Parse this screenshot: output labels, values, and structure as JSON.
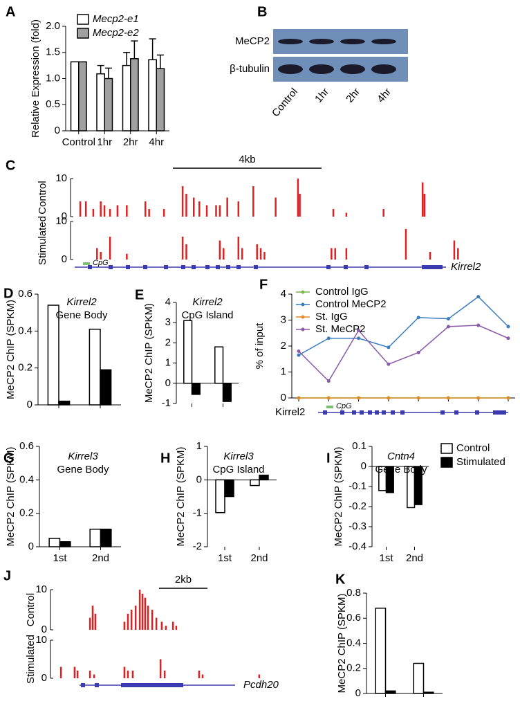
{
  "blot": {
    "label": "B",
    "rows": [
      "MeCP2",
      "β-tubulin"
    ],
    "lanes": [
      "Control",
      "1hr",
      "2hr",
      "4hr"
    ]
  },
  "chart_data": [
    {
      "label": "A",
      "type": "bar",
      "ylabel": "Relative Expression (fold)",
      "categories": [
        "Control",
        "1hr",
        "2hr",
        "4hr"
      ],
      "series": [
        {
          "name": "Mecp2-e1",
          "color": "#ffffff",
          "values": [
            1.32,
            1.09,
            1.25,
            1.36
          ],
          "errors": [
            null,
            0.16,
            0.25,
            0.4
          ]
        },
        {
          "name": "Mecp2-e2",
          "color": "#a0a0a0",
          "values": [
            1.32,
            1.0,
            1.38,
            1.19
          ],
          "errors": [
            null,
            0.2,
            0.34,
            0.26
          ]
        }
      ],
      "ylim": [
        0,
        2
      ],
      "yticks": [
        0,
        0.5,
        {
          "value": 1,
          "label": "1.0"
        },
        1.5,
        {
          "value": 2,
          "label": "2.0"
        }
      ],
      "legend": "upper left"
    },
    {
      "label": "C",
      "type": "track",
      "scale_bar": "4kb",
      "gene": "Kirrel2",
      "cpg": "CpG",
      "xlim": [
        0,
        110
      ],
      "ylim": [
        0,
        10
      ],
      "yticks": [
        0,
        10
      ],
      "series": [
        {
          "name": "Control",
          "color": "#e02020",
          "x": [
            1.5,
            3,
            5,
            7,
            8,
            9.5,
            11.5,
            14,
            19,
            20,
            24,
            29,
            30,
            32,
            33.5,
            35.5,
            38,
            39,
            41,
            44,
            48,
            54,
            60,
            60.5,
            69.5,
            73,
            83,
            93.5,
            94
          ],
          "values": [
            4,
            4,
            2,
            4,
            3,
            2,
            3,
            3,
            4,
            2,
            2,
            8,
            6,
            5,
            4,
            3,
            3,
            3,
            5,
            4,
            8,
            5,
            10,
            6,
            2,
            1,
            2,
            9,
            6
          ]
        },
        {
          "name": "Stimulated",
          "color": "#e02020",
          "x": [
            6,
            7,
            9.5,
            14,
            29,
            30,
            39,
            40,
            44,
            45,
            49,
            50,
            51,
            69,
            70,
            73,
            89,
            95.5,
            102,
            103
          ],
          "values": [
            3,
            2,
            6,
            1.5,
            6,
            4,
            5,
            3,
            6,
            3,
            4,
            3,
            2,
            3,
            3,
            3,
            8,
            2,
            5,
            3
          ]
        }
      ]
    },
    {
      "label": "D",
      "type": "bar",
      "title": "Kirrel2",
      "subtitle": "Gene Body",
      "ylabel": "MeCP2 ChIP (SPKM)",
      "ylim": [
        0,
        0.6
      ],
      "yticks": [
        0,
        0.2,
        0.4,
        0.6
      ],
      "series": [
        {
          "color": "#ffffff",
          "values": [
            0.54,
            0.41
          ]
        },
        {
          "color": "#000000",
          "values": [
            0.02,
            0.19
          ]
        }
      ]
    },
    {
      "label": "E",
      "type": "bar",
      "title": "Kirrel2",
      "subtitle": "CpG Island",
      "ylabel": "MeCP2 ChIP (SPKM)",
      "ylim": [
        -1,
        4
      ],
      "yticks": [
        -1,
        0,
        1,
        2,
        3,
        4
      ],
      "series": [
        {
          "color": "#ffffff",
          "values": [
            3.1,
            1.8
          ]
        },
        {
          "color": "#000000",
          "values": [
            -0.55,
            -0.9
          ]
        }
      ]
    },
    {
      "label": "F",
      "type": "line",
      "ylabel": "% of input",
      "gene": "Kirrel2",
      "cpg": "CpG",
      "categories": [
        null,
        null,
        null,
        null,
        null,
        null,
        null,
        null
      ],
      "ylim": [
        0,
        4
      ],
      "yticks": [
        0,
        1,
        2,
        3,
        4
      ],
      "legend": "upper left",
      "series": [
        {
          "name": "Control IgG",
          "color": "#7ab648",
          "values": [
            0,
            0,
            0,
            0,
            0,
            0,
            0,
            0
          ]
        },
        {
          "name": "Control MeCP2",
          "color": "#3a7cc0",
          "values": [
            1.65,
            2.3,
            2.3,
            1.95,
            3.1,
            3.05,
            3.9,
            2.75
          ]
        },
        {
          "name": "St. IgG",
          "color": "#e08a2a",
          "values": [
            0,
            0,
            0,
            0,
            0,
            0,
            0,
            0
          ]
        },
        {
          "name": "St. MeCP2",
          "color": "#8a5aa8",
          "values": [
            1.8,
            0.65,
            2.6,
            1.3,
            1.75,
            2.75,
            2.8,
            2.3
          ]
        }
      ]
    },
    {
      "label": "G",
      "type": "bar",
      "title": "Kirrel3",
      "subtitle": "Gene Body",
      "ylabel": "MeCP2 ChIP (SPKM)",
      "categories": [
        "1st",
        "2nd"
      ],
      "ylim": [
        0,
        0.6
      ],
      "yticks": [
        0,
        0.2,
        0.4,
        0.6
      ],
      "series": [
        {
          "color": "#ffffff",
          "values": [
            0.05,
            0.105
          ]
        },
        {
          "color": "#000000",
          "values": [
            0.03,
            0.105
          ]
        }
      ]
    },
    {
      "label": "H",
      "type": "bar",
      "title": "Kirrel3",
      "subtitle": "CpG Island",
      "ylabel": "MeCP2 ChIP (SPKM)",
      "categories": [
        "1st",
        "2nd"
      ],
      "ylim": [
        -2,
        1
      ],
      "yticks": [
        -2,
        -1,
        0,
        1
      ],
      "series": [
        {
          "color": "#ffffff",
          "values": [
            -0.98,
            -0.17
          ]
        },
        {
          "color": "#000000",
          "values": [
            -0.5,
            0.14
          ]
        }
      ]
    },
    {
      "label": "I",
      "type": "bar",
      "title": "Cntn4",
      "subtitle": "Gene Body",
      "ylabel": "MeCP2 ChIP (SPKM)",
      "categories": [
        "1st",
        "2nd"
      ],
      "ylim": [
        -0.4,
        0.1
      ],
      "yticks": [
        -0.4,
        -0.3,
        -0.2,
        -0.1,
        0,
        0.1
      ],
      "legend": "right",
      "series": [
        {
          "name": "Control",
          "color": "#ffffff",
          "values": [
            -0.12,
            -0.205
          ]
        },
        {
          "name": "Stimulated",
          "color": "#000000",
          "values": [
            -0.13,
            -0.19
          ]
        }
      ]
    },
    {
      "label": "J",
      "type": "track",
      "scale_bar": "2kb",
      "gene": "Pcdh20",
      "xlim": [
        0,
        100
      ],
      "ylim": [
        0,
        10
      ],
      "yticks": [
        0,
        10
      ],
      "series": [
        {
          "name": "Control",
          "color": "#e02020",
          "x": [
            16.7,
            18,
            19.3,
            33.3,
            35,
            36.7,
            38.7,
            40.7,
            42,
            43.3,
            44.7,
            46.7,
            48.7,
            51.3,
            53.3,
            56.7,
            58.3
          ],
          "values": [
            3,
            6,
            4,
            2,
            4,
            5,
            6,
            10,
            9,
            8,
            6,
            5,
            3,
            2,
            1,
            2,
            1
          ]
        },
        {
          "name": "Stimulated",
          "color": "#e02020",
          "x": [
            2.7,
            9.3,
            10.7,
            16.7,
            18.7,
            33.3,
            35,
            37.3,
            50.7,
            52.7,
            69.3,
            71,
            98.3
          ],
          "values": [
            3,
            3,
            2,
            2,
            1,
            3,
            2,
            2,
            5,
            2,
            2,
            1,
            1
          ]
        }
      ]
    },
    {
      "label": "K",
      "type": "bar",
      "ylabel": "MeCP2 ChIP (SPKM)",
      "ylim": [
        0,
        0.8
      ],
      "yticks": [
        0,
        0.2,
        0.4,
        0.6,
        0.8
      ],
      "series": [
        {
          "color": "#ffffff",
          "values": [
            0.68,
            0.24
          ]
        },
        {
          "color": "#000000",
          "values": [
            0.02,
            0.01
          ]
        }
      ]
    }
  ]
}
